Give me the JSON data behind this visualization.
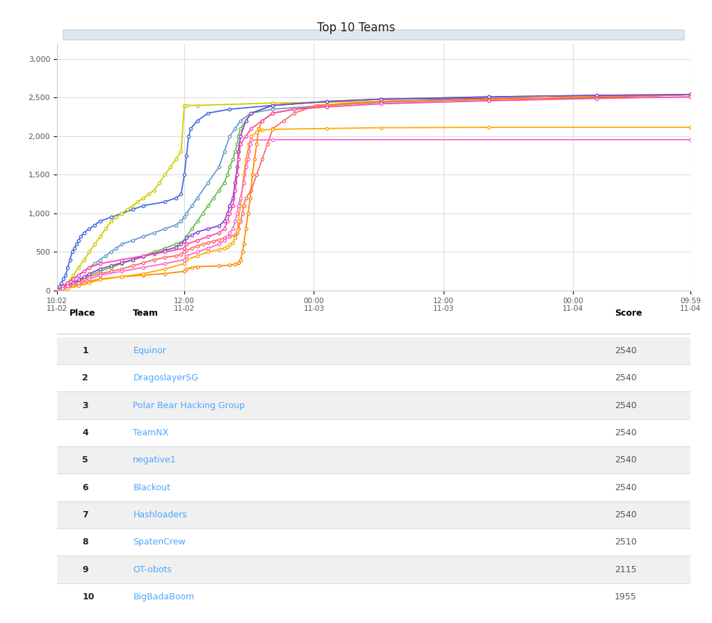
{
  "title": "Top 10 Teams",
  "background_color": "#ffffff",
  "plot_bg_color": "#ffffff",
  "grid_color": "#dddddd",
  "teams": [
    {
      "name": "Equinor",
      "color": "#4169e1",
      "final_score": 2540
    },
    {
      "name": "DragoslayerSG",
      "color": "#cccc00",
      "final_score": 2540
    },
    {
      "name": "Polar Bear Hacking Group",
      "color": "#6699cc",
      "final_score": 2540
    },
    {
      "name": "TeamNX",
      "color": "#66bb44",
      "final_score": 2540
    },
    {
      "name": "negative1",
      "color": "#ff6666",
      "final_score": 2540
    },
    {
      "name": "Blackout",
      "color": "#ff8800",
      "final_score": 2540
    },
    {
      "name": "Hashloaders",
      "color": "#8844cc",
      "final_score": 2540
    },
    {
      "name": "SpatenCrew",
      "color": "#ff44aa",
      "final_score": 2510
    },
    {
      "name": "OT-obots",
      "color": "#ffaa00",
      "final_score": 2115
    },
    {
      "name": "BigBadaBoom",
      "color": "#ff66cc",
      "final_score": 1955
    }
  ],
  "table_header_color": "#000000",
  "table_team_color": "#4da6ff",
  "table_score_color": "#555555",
  "table_place_color": "#222222",
  "table_row_alt_color": "#f0f0f0",
  "table_row_color": "#ffffff",
  "axis_label_color": "#555555",
  "scrollbar_color": "#c8d8e8",
  "x_tick_labels": [
    "10:02\n11-02",
    "12:00\n11-02",
    "00:00\n11-03",
    "12:00\n11-03",
    "00:00\n11-04",
    "09:59\n11-04"
  ],
  "x_tick_positions": [
    0,
    118,
    238,
    358,
    478,
    587
  ],
  "y_ticks": [
    0,
    500,
    1000,
    1500,
    2000,
    2500,
    3000
  ],
  "series": {
    "Equinor": [
      [
        0,
        0
      ],
      [
        2,
        50
      ],
      [
        4,
        100
      ],
      [
        6,
        150
      ],
      [
        8,
        200
      ],
      [
        10,
        300
      ],
      [
        12,
        400
      ],
      [
        14,
        500
      ],
      [
        16,
        550
      ],
      [
        18,
        600
      ],
      [
        20,
        650
      ],
      [
        22,
        700
      ],
      [
        25,
        750
      ],
      [
        30,
        800
      ],
      [
        35,
        850
      ],
      [
        40,
        900
      ],
      [
        50,
        950
      ],
      [
        60,
        1000
      ],
      [
        70,
        1050
      ],
      [
        80,
        1100
      ],
      [
        100,
        1150
      ],
      [
        110,
        1200
      ],
      [
        115,
        1250
      ],
      [
        118,
        1500
      ],
      [
        120,
        1750
      ],
      [
        122,
        2000
      ],
      [
        124,
        2100
      ],
      [
        130,
        2200
      ],
      [
        140,
        2300
      ],
      [
        160,
        2350
      ],
      [
        200,
        2400
      ],
      [
        250,
        2450
      ],
      [
        300,
        2480
      ],
      [
        400,
        2490
      ],
      [
        500,
        2500
      ],
      [
        587,
        2540
      ]
    ],
    "DragoslayerSG": [
      [
        0,
        0
      ],
      [
        5,
        50
      ],
      [
        10,
        100
      ],
      [
        15,
        200
      ],
      [
        20,
        300
      ],
      [
        25,
        400
      ],
      [
        30,
        500
      ],
      [
        35,
        600
      ],
      [
        40,
        700
      ],
      [
        45,
        800
      ],
      [
        50,
        900
      ],
      [
        55,
        950
      ],
      [
        60,
        1000
      ],
      [
        65,
        1050
      ],
      [
        70,
        1100
      ],
      [
        75,
        1150
      ],
      [
        80,
        1200
      ],
      [
        85,
        1250
      ],
      [
        90,
        1300
      ],
      [
        95,
        1400
      ],
      [
        100,
        1500
      ],
      [
        105,
        1600
      ],
      [
        110,
        1700
      ],
      [
        115,
        1800
      ],
      [
        118,
        2400
      ],
      [
        120,
        2400
      ],
      [
        130,
        2400
      ],
      [
        200,
        2430
      ],
      [
        300,
        2450
      ],
      [
        400,
        2480
      ],
      [
        500,
        2510
      ],
      [
        587,
        2540
      ]
    ],
    "Polar Bear Hacking Group": [
      [
        0,
        0
      ],
      [
        3,
        30
      ],
      [
        6,
        60
      ],
      [
        10,
        100
      ],
      [
        15,
        150
      ],
      [
        20,
        200
      ],
      [
        25,
        250
      ],
      [
        30,
        300
      ],
      [
        35,
        350
      ],
      [
        40,
        400
      ],
      [
        45,
        450
      ],
      [
        50,
        500
      ],
      [
        55,
        550
      ],
      [
        60,
        600
      ],
      [
        70,
        650
      ],
      [
        80,
        700
      ],
      [
        90,
        750
      ],
      [
        100,
        800
      ],
      [
        110,
        850
      ],
      [
        115,
        900
      ],
      [
        118,
        950
      ],
      [
        120,
        1000
      ],
      [
        125,
        1100
      ],
      [
        130,
        1200
      ],
      [
        140,
        1400
      ],
      [
        150,
        1600
      ],
      [
        155,
        1800
      ],
      [
        160,
        2000
      ],
      [
        165,
        2100
      ],
      [
        170,
        2200
      ],
      [
        180,
        2300
      ],
      [
        200,
        2350
      ],
      [
        250,
        2400
      ],
      [
        300,
        2440
      ],
      [
        400,
        2480
      ],
      [
        500,
        2510
      ],
      [
        587,
        2540
      ]
    ],
    "TeamNX": [
      [
        0,
        0
      ],
      [
        5,
        30
      ],
      [
        10,
        60
      ],
      [
        15,
        100
      ],
      [
        20,
        130
      ],
      [
        25,
        160
      ],
      [
        30,
        200
      ],
      [
        40,
        250
      ],
      [
        50,
        300
      ],
      [
        60,
        350
      ],
      [
        70,
        400
      ],
      [
        80,
        450
      ],
      [
        90,
        500
      ],
      [
        100,
        550
      ],
      [
        110,
        600
      ],
      [
        118,
        650
      ],
      [
        120,
        700
      ],
      [
        125,
        800
      ],
      [
        130,
        900
      ],
      [
        135,
        1000
      ],
      [
        140,
        1100
      ],
      [
        145,
        1200
      ],
      [
        150,
        1300
      ],
      [
        155,
        1400
      ],
      [
        158,
        1500
      ],
      [
        160,
        1600
      ],
      [
        163,
        1700
      ],
      [
        165,
        1800
      ],
      [
        167,
        1900
      ],
      [
        168,
        2000
      ],
      [
        170,
        2100
      ],
      [
        175,
        2200
      ],
      [
        180,
        2300
      ],
      [
        200,
        2400
      ],
      [
        250,
        2450
      ],
      [
        300,
        2480
      ],
      [
        400,
        2510
      ],
      [
        500,
        2530
      ],
      [
        587,
        2540
      ]
    ],
    "negative1": [
      [
        0,
        0
      ],
      [
        3,
        30
      ],
      [
        6,
        60
      ],
      [
        10,
        80
      ],
      [
        15,
        100
      ],
      [
        20,
        120
      ],
      [
        25,
        150
      ],
      [
        30,
        180
      ],
      [
        40,
        220
      ],
      [
        50,
        250
      ],
      [
        60,
        280
      ],
      [
        70,
        320
      ],
      [
        80,
        360
      ],
      [
        90,
        400
      ],
      [
        100,
        430
      ],
      [
        110,
        450
      ],
      [
        115,
        470
      ],
      [
        118,
        500
      ],
      [
        120,
        520
      ],
      [
        125,
        550
      ],
      [
        130,
        580
      ],
      [
        135,
        600
      ],
      [
        140,
        620
      ],
      [
        145,
        640
      ],
      [
        150,
        660
      ],
      [
        155,
        680
      ],
      [
        160,
        700
      ],
      [
        165,
        720
      ],
      [
        167,
        750
      ],
      [
        168,
        800
      ],
      [
        170,
        900
      ],
      [
        172,
        1000
      ],
      [
        173,
        1100
      ],
      [
        175,
        1200
      ],
      [
        180,
        1300
      ],
      [
        185,
        1500
      ],
      [
        190,
        1700
      ],
      [
        195,
        1900
      ],
      [
        200,
        2100
      ],
      [
        210,
        2200
      ],
      [
        220,
        2300
      ],
      [
        240,
        2400
      ],
      [
        300,
        2450
      ],
      [
        400,
        2480
      ],
      [
        500,
        2510
      ],
      [
        587,
        2540
      ]
    ],
    "Blackout": [
      [
        0,
        0
      ],
      [
        5,
        20
      ],
      [
        10,
        40
      ],
      [
        15,
        60
      ],
      [
        20,
        80
      ],
      [
        25,
        100
      ],
      [
        30,
        120
      ],
      [
        40,
        150
      ],
      [
        60,
        180
      ],
      [
        80,
        200
      ],
      [
        100,
        220
      ],
      [
        118,
        250
      ],
      [
        120,
        280
      ],
      [
        125,
        300
      ],
      [
        130,
        310
      ],
      [
        150,
        320
      ],
      [
        160,
        330
      ],
      [
        165,
        340
      ],
      [
        168,
        360
      ],
      [
        170,
        400
      ],
      [
        172,
        500
      ],
      [
        173,
        600
      ],
      [
        175,
        800
      ],
      [
        177,
        1000
      ],
      [
        179,
        1200
      ],
      [
        181,
        1500
      ],
      [
        183,
        1700
      ],
      [
        185,
        1900
      ],
      [
        187,
        2100
      ],
      [
        190,
        2200
      ],
      [
        200,
        2300
      ],
      [
        220,
        2350
      ],
      [
        250,
        2400
      ],
      [
        300,
        2450
      ],
      [
        400,
        2480
      ],
      [
        500,
        2510
      ],
      [
        587,
        2540
      ]
    ],
    "Hashloaders": [
      [
        0,
        0
      ],
      [
        5,
        30
      ],
      [
        10,
        60
      ],
      [
        15,
        100
      ],
      [
        20,
        140
      ],
      [
        25,
        180
      ],
      [
        30,
        220
      ],
      [
        40,
        280
      ],
      [
        50,
        320
      ],
      [
        60,
        360
      ],
      [
        70,
        400
      ],
      [
        80,
        440
      ],
      [
        90,
        480
      ],
      [
        100,
        520
      ],
      [
        110,
        560
      ],
      [
        115,
        600
      ],
      [
        118,
        640
      ],
      [
        120,
        680
      ],
      [
        125,
        720
      ],
      [
        130,
        760
      ],
      [
        140,
        800
      ],
      [
        150,
        840
      ],
      [
        155,
        900
      ],
      [
        158,
        1000
      ],
      [
        160,
        1100
      ],
      [
        163,
        1200
      ],
      [
        165,
        1400
      ],
      [
        167,
        1600
      ],
      [
        168,
        1800
      ],
      [
        170,
        2000
      ],
      [
        175,
        2200
      ],
      [
        180,
        2300
      ],
      [
        200,
        2400
      ],
      [
        250,
        2450
      ],
      [
        300,
        2480
      ],
      [
        400,
        2510
      ],
      [
        500,
        2530
      ],
      [
        587,
        2540
      ]
    ],
    "SpatenCrew": [
      [
        0,
        0
      ],
      [
        5,
        50
      ],
      [
        10,
        100
      ],
      [
        15,
        150
      ],
      [
        20,
        200
      ],
      [
        25,
        250
      ],
      [
        30,
        300
      ],
      [
        40,
        350
      ],
      [
        60,
        400
      ],
      [
        80,
        450
      ],
      [
        100,
        500
      ],
      [
        118,
        550
      ],
      [
        120,
        600
      ],
      [
        130,
        650
      ],
      [
        140,
        700
      ],
      [
        150,
        750
      ],
      [
        155,
        800
      ],
      [
        158,
        900
      ],
      [
        160,
        1000
      ],
      [
        163,
        1100
      ],
      [
        165,
        1300
      ],
      [
        167,
        1500
      ],
      [
        168,
        1700
      ],
      [
        170,
        1900
      ],
      [
        175,
        2000
      ],
      [
        180,
        2100
      ],
      [
        190,
        2200
      ],
      [
        200,
        2300
      ],
      [
        220,
        2350
      ],
      [
        250,
        2380
      ],
      [
        300,
        2420
      ],
      [
        400,
        2460
      ],
      [
        500,
        2490
      ],
      [
        587,
        2510
      ]
    ],
    "OT-obots": [
      [
        0,
        0
      ],
      [
        10,
        30
      ],
      [
        20,
        60
      ],
      [
        30,
        100
      ],
      [
        40,
        140
      ],
      [
        60,
        180
      ],
      [
        80,
        220
      ],
      [
        100,
        280
      ],
      [
        118,
        350
      ],
      [
        120,
        400
      ],
      [
        130,
        450
      ],
      [
        140,
        500
      ],
      [
        150,
        530
      ],
      [
        155,
        550
      ],
      [
        158,
        570
      ],
      [
        160,
        590
      ],
      [
        163,
        620
      ],
      [
        165,
        680
      ],
      [
        167,
        780
      ],
      [
        168,
        900
      ],
      [
        170,
        1100
      ],
      [
        173,
        1500
      ],
      [
        175,
        1700
      ],
      [
        178,
        1900
      ],
      [
        180,
        2000
      ],
      [
        185,
        2050
      ],
      [
        190,
        2080
      ],
      [
        200,
        2090
      ],
      [
        250,
        2100
      ],
      [
        300,
        2110
      ],
      [
        400,
        2115
      ],
      [
        587,
        2115
      ]
    ],
    "BigBadaBoom": [
      [
        0,
        0
      ],
      [
        5,
        30
      ],
      [
        10,
        60
      ],
      [
        20,
        100
      ],
      [
        30,
        150
      ],
      [
        40,
        200
      ],
      [
        60,
        250
      ],
      [
        80,
        300
      ],
      [
        100,
        350
      ],
      [
        118,
        400
      ],
      [
        120,
        450
      ],
      [
        130,
        500
      ],
      [
        140,
        550
      ],
      [
        150,
        600
      ],
      [
        155,
        650
      ],
      [
        158,
        700
      ],
      [
        160,
        750
      ],
      [
        163,
        800
      ],
      [
        165,
        900
      ],
      [
        167,
        1000
      ],
      [
        168,
        1100
      ],
      [
        170,
        1200
      ],
      [
        173,
        1400
      ],
      [
        175,
        1600
      ],
      [
        177,
        1700
      ],
      [
        178,
        1800
      ],
      [
        179,
        1900
      ],
      [
        180,
        1950
      ],
      [
        200,
        1955
      ],
      [
        587,
        1955
      ]
    ]
  }
}
